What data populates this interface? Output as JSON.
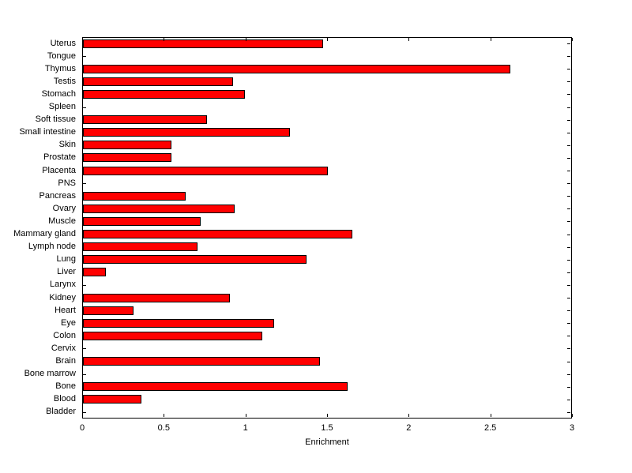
{
  "chart_data": {
    "type": "bar",
    "orientation": "horizontal",
    "title": "",
    "xlabel": "Enrichment",
    "ylabel": "",
    "xlim": [
      0,
      3
    ],
    "xticks": [
      0,
      0.5,
      1,
      1.5,
      2,
      2.5,
      3
    ],
    "xtick_labels": [
      "0",
      "0.5",
      "1",
      "1.5",
      "2",
      "2.5",
      "3"
    ],
    "grid": false,
    "legend": "none",
    "bar_color": "#ff0000",
    "bar_edge_color": "#000000",
    "categories": [
      "Uterus",
      "Tongue",
      "Thymus",
      "Testis",
      "Stomach",
      "Spleen",
      "Soft tissue",
      "Small intestine",
      "Skin",
      "Prostate",
      "Placenta",
      "PNS",
      "Pancreas",
      "Ovary",
      "Muscle",
      "Mammary gland",
      "Lymph node",
      "Lung",
      "Liver",
      "Larynx",
      "Kidney",
      "Heart",
      "Eye",
      "Colon",
      "Cervix",
      "Brain",
      "Bone marrow",
      "Bone",
      "Blood",
      "Bladder"
    ],
    "values": [
      1.47,
      0,
      2.62,
      0.92,
      0.99,
      0,
      0.76,
      1.27,
      0.54,
      0.54,
      1.5,
      0,
      0.63,
      0.93,
      0.72,
      1.65,
      0.7,
      1.37,
      0.14,
      0,
      0.9,
      0.31,
      1.17,
      1.1,
      0,
      1.45,
      0,
      1.62,
      0.36,
      0
    ]
  }
}
